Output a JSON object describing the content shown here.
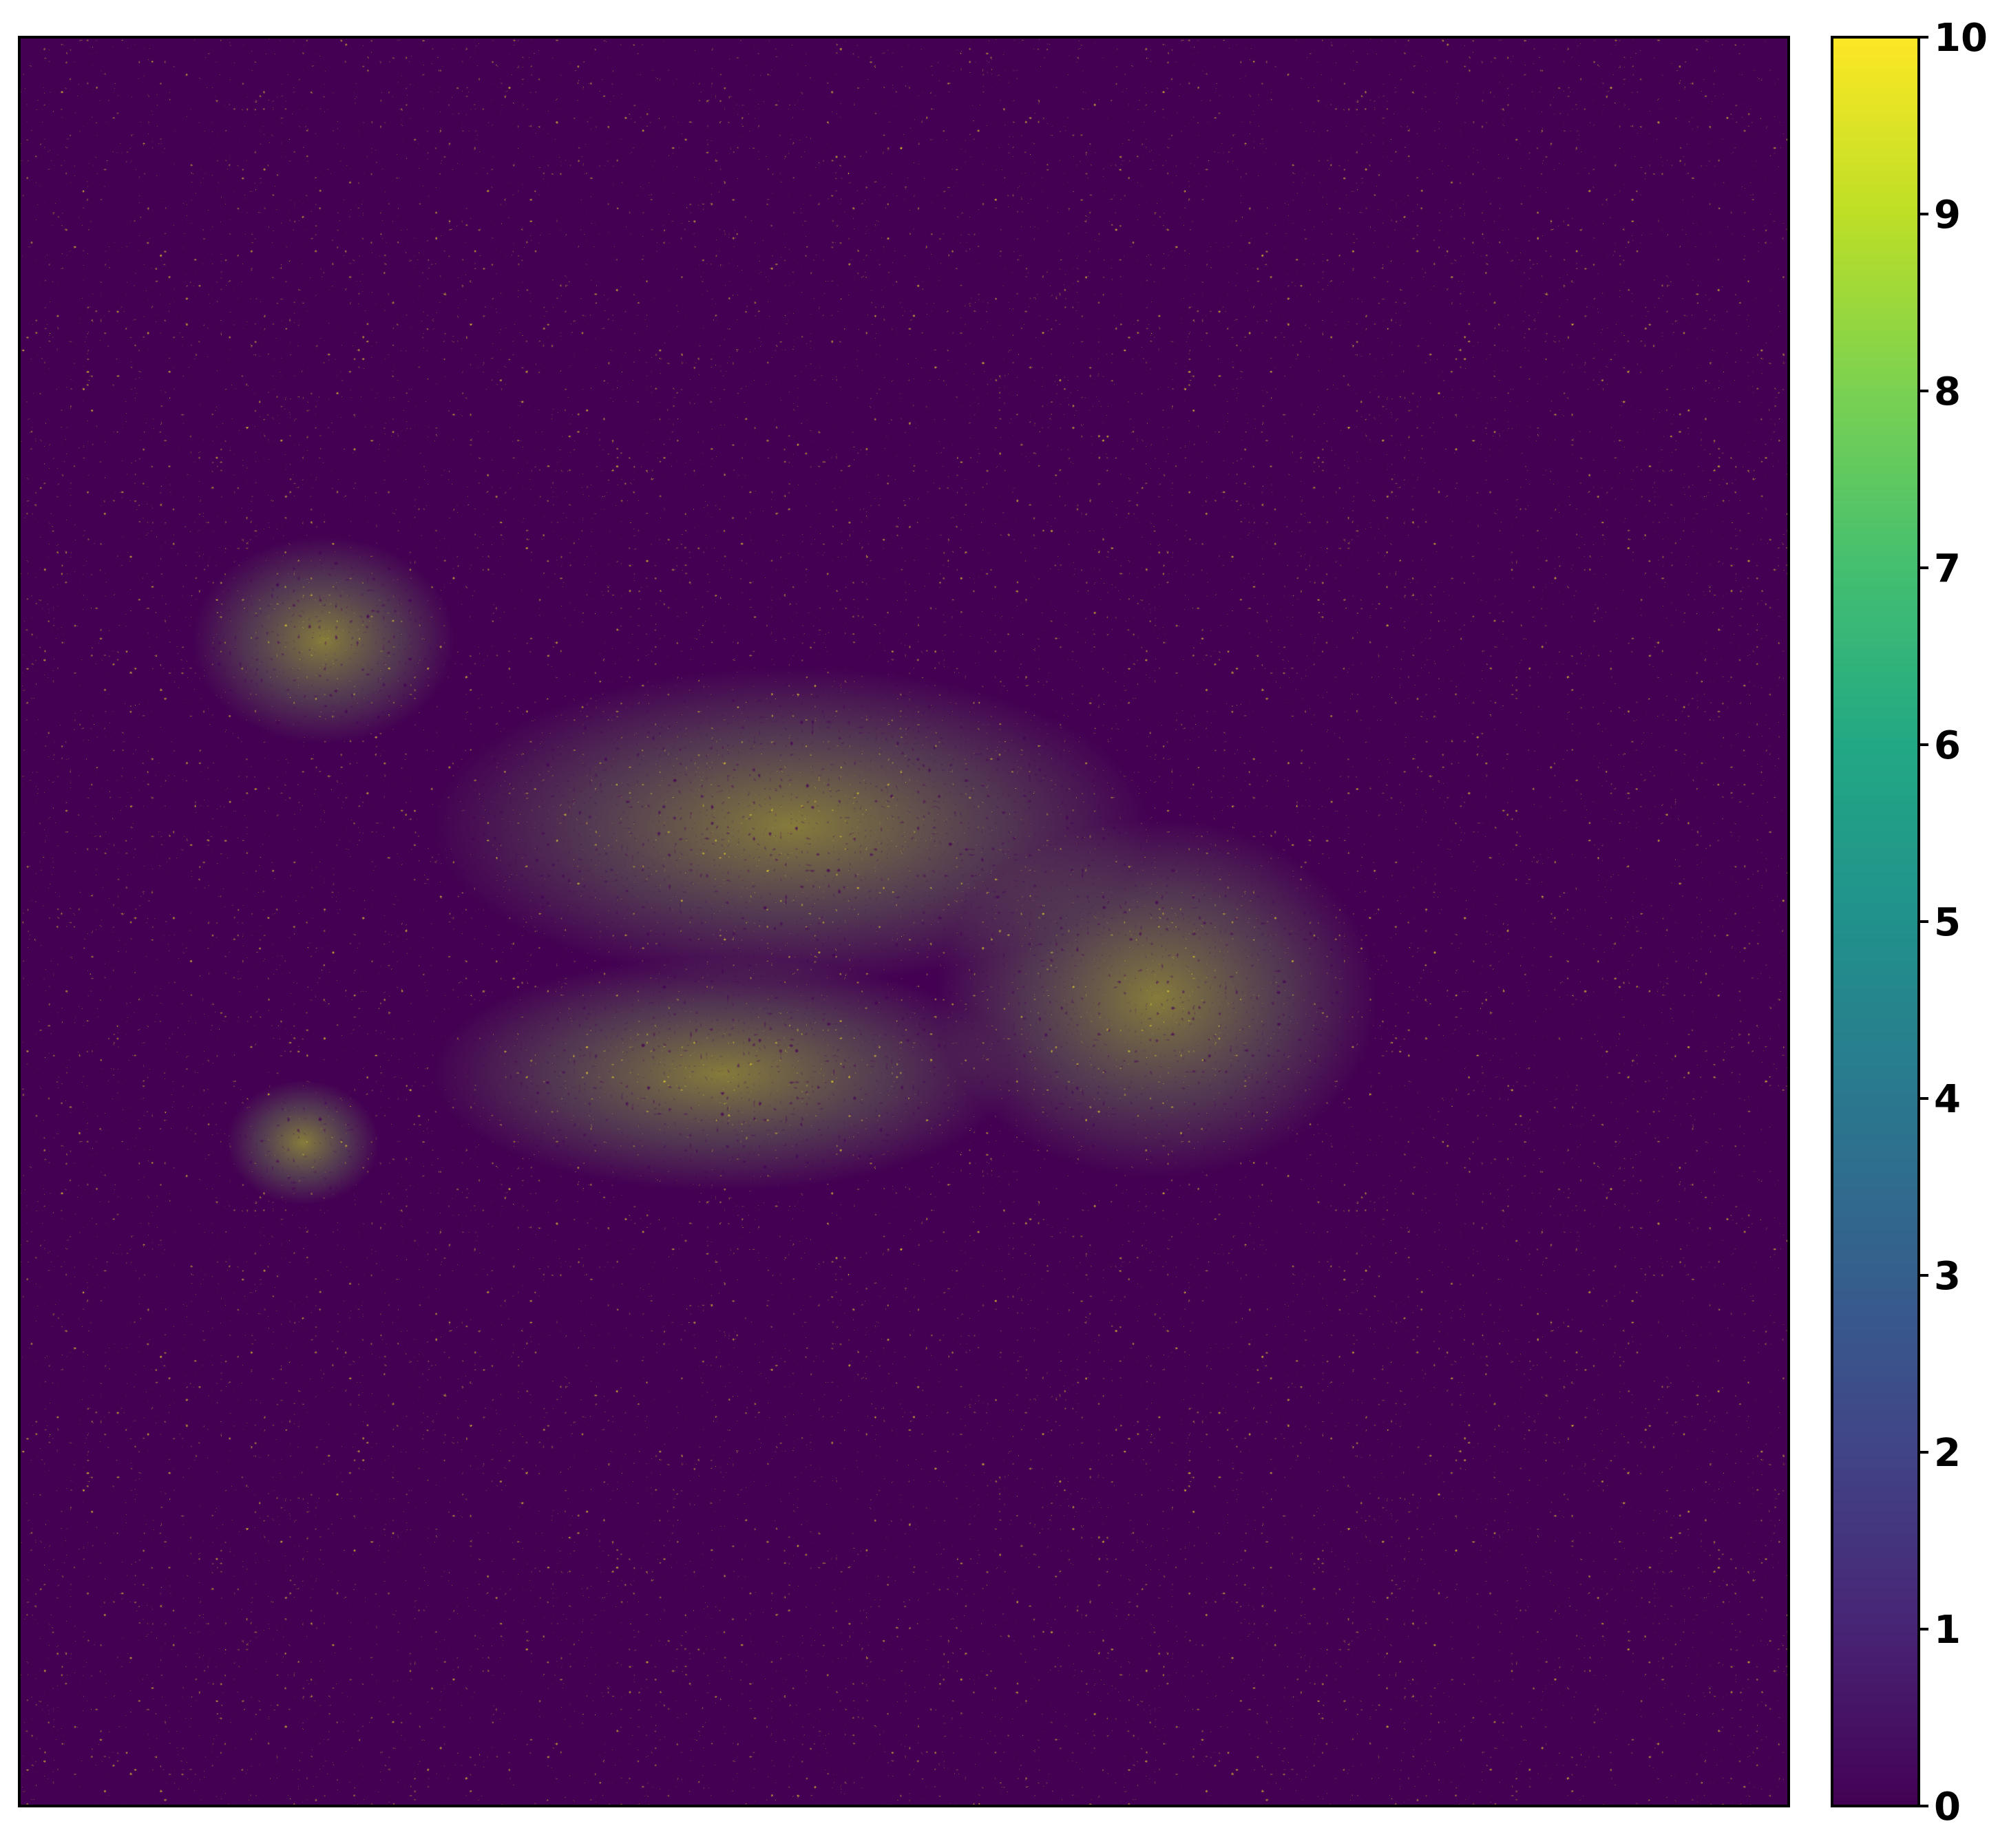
{
  "chart_data": {
    "type": "heatmap",
    "title": "",
    "xlabel": "",
    "ylabel": "",
    "x_ticks_shown": false,
    "y_ticks_shown": false,
    "grid": false,
    "colormap": "viridis",
    "color_range": [
      0,
      10
    ],
    "colorbar": {
      "position": "right",
      "ticks": [
        0,
        1,
        2,
        3,
        4,
        5,
        6,
        7,
        8,
        9,
        10
      ],
      "tick_labels": [
        "0",
        "1",
        "2",
        "3",
        "4",
        "5",
        "6",
        "7",
        "8",
        "9",
        "10"
      ]
    },
    "colors": {
      "low": "#440154",
      "mid": "#21918c",
      "high": "#fde725"
    },
    "description_of_field": "Dense speckle noise spanning the full 0-10 range; a brighter (higher-valued) textured band crosses the centre of the map"
  }
}
